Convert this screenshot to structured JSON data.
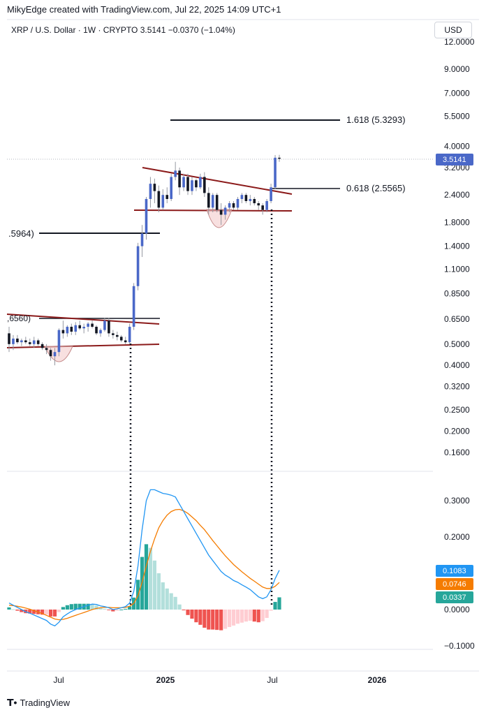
{
  "header": {
    "caption": "MikyEdge created with TradingView.com, Jul 22, 2025 14:09 UTC+1",
    "symbol_line": "XRP / U.S. Dollar · 1W · CRYPTO  3.5141  −0.0370 (−1.04%)",
    "currency_button": "USD"
  },
  "footer": {
    "brand": "TradingView",
    "logo_icon": "tradingview-logo-icon"
  },
  "colors": {
    "up": "#4a68c8",
    "down": "#131722",
    "macd": "#2196f3",
    "signal": "#f57c00",
    "hist_up_strong": "#26a69a",
    "hist_up_weak": "#b2dfdb",
    "hist_down_strong": "#ef5350",
    "hist_down_weak": "#ffcdd2",
    "trendline": "#8b1a1a"
  },
  "chart_data": [
    {
      "type": "candlestick",
      "scale": "log",
      "price_axis_labels": [
        "12.0000",
        "9.0000",
        "7.0000",
        "5.5000",
        "4.0000",
        "3.2000",
        "2.4000",
        "1.8000",
        "1.4000",
        "1.1000",
        "0.8500",
        "0.6500",
        "0.5000",
        "0.4000",
        "0.3200",
        "0.2500",
        "0.2000",
        "0.1600"
      ],
      "price_axis_values": [
        12,
        9,
        7,
        5.5,
        4,
        3.2,
        2.4,
        1.8,
        1.4,
        1.1,
        0.85,
        0.65,
        0.5,
        0.4,
        0.32,
        0.25,
        0.2,
        0.16
      ],
      "x_axis_labels": [
        "Jul",
        "2025",
        "Jul",
        "2026"
      ],
      "last_price_label": "3.5141",
      "last_price": 3.5141,
      "annotations": [
        {
          "label": "1.618 (5.3293)",
          "price": 5.3293
        },
        {
          "label": "0.618 (2.5565)",
          "price": 2.5565
        },
        {
          "label": ".5964)",
          "price": 1.5964
        },
        {
          "label": ",6560)",
          "price": 0.656
        }
      ],
      "candles": [
        [
          0.56,
          0.6,
          0.46,
          0.5
        ],
        [
          0.5,
          0.55,
          0.47,
          0.53
        ],
        [
          0.53,
          0.55,
          0.5,
          0.51
        ],
        [
          0.51,
          0.53,
          0.49,
          0.52
        ],
        [
          0.52,
          0.54,
          0.5,
          0.51
        ],
        [
          0.51,
          0.53,
          0.49,
          0.5
        ],
        [
          0.5,
          0.54,
          0.48,
          0.52
        ],
        [
          0.52,
          0.53,
          0.49,
          0.5
        ],
        [
          0.5,
          0.51,
          0.47,
          0.48
        ],
        [
          0.48,
          0.5,
          0.45,
          0.47
        ],
        [
          0.47,
          0.48,
          0.42,
          0.44
        ],
        [
          0.44,
          0.48,
          0.4,
          0.46
        ],
        [
          0.46,
          0.59,
          0.44,
          0.58
        ],
        [
          0.58,
          0.64,
          0.53,
          0.56
        ],
        [
          0.56,
          0.61,
          0.54,
          0.6
        ],
        [
          0.6,
          0.62,
          0.55,
          0.57
        ],
        [
          0.57,
          0.63,
          0.55,
          0.61
        ],
        [
          0.61,
          0.64,
          0.58,
          0.59
        ],
        [
          0.59,
          0.62,
          0.56,
          0.6
        ],
        [
          0.6,
          0.63,
          0.57,
          0.62
        ],
        [
          0.62,
          0.64,
          0.59,
          0.6
        ],
        [
          0.6,
          0.61,
          0.55,
          0.56
        ],
        [
          0.56,
          0.59,
          0.54,
          0.58
        ],
        [
          0.58,
          0.66,
          0.57,
          0.64
        ],
        [
          0.64,
          0.66,
          0.54,
          0.56
        ],
        [
          0.56,
          0.58,
          0.53,
          0.55
        ],
        [
          0.55,
          0.57,
          0.52,
          0.54
        ],
        [
          0.54,
          0.55,
          0.51,
          0.52
        ],
        [
          0.52,
          0.54,
          0.5,
          0.51
        ],
        [
          0.51,
          0.62,
          0.5,
          0.6
        ],
        [
          0.6,
          0.95,
          0.58,
          0.92
        ],
        [
          0.92,
          1.45,
          0.88,
          1.4
        ],
        [
          1.4,
          1.75,
          1.25,
          1.6
        ],
        [
          1.6,
          2.35,
          1.5,
          2.3
        ],
        [
          2.3,
          2.9,
          2.1,
          2.7
        ],
        [
          2.7,
          2.85,
          2.2,
          2.5
        ],
        [
          2.5,
          2.65,
          2.0,
          2.1
        ],
        [
          2.1,
          2.55,
          2.05,
          2.4
        ],
        [
          2.4,
          2.6,
          2.2,
          2.3
        ],
        [
          2.3,
          3.0,
          2.25,
          2.9
        ],
        [
          2.9,
          3.4,
          2.8,
          3.1
        ],
        [
          3.1,
          3.2,
          2.4,
          2.6
        ],
        [
          2.6,
          3.0,
          2.5,
          2.9
        ],
        [
          2.9,
          3.0,
          2.4,
          2.5
        ],
        [
          2.5,
          2.9,
          2.4,
          2.8
        ],
        [
          2.8,
          2.85,
          2.5,
          2.6
        ],
        [
          2.6,
          3.0,
          2.55,
          2.9
        ],
        [
          2.9,
          3.05,
          2.35,
          2.45
        ],
        [
          2.45,
          2.6,
          1.95,
          2.1
        ],
        [
          2.1,
          2.45,
          2.0,
          2.4
        ],
        [
          2.4,
          2.45,
          2.0,
          2.05
        ],
        [
          2.05,
          2.2,
          1.75,
          1.95
        ],
        [
          1.95,
          2.15,
          1.85,
          2.1
        ],
        [
          2.1,
          2.25,
          2.0,
          2.2
        ],
        [
          2.2,
          2.25,
          2.05,
          2.1
        ],
        [
          2.1,
          2.35,
          2.05,
          2.3
        ],
        [
          2.3,
          2.45,
          2.2,
          2.4
        ],
        [
          2.4,
          2.45,
          2.2,
          2.25
        ],
        [
          2.25,
          2.4,
          2.15,
          2.3
        ],
        [
          2.3,
          2.35,
          2.15,
          2.2
        ],
        [
          2.2,
          2.25,
          2.05,
          2.15
        ],
        [
          2.15,
          2.2,
          1.95,
          2.05
        ],
        [
          2.05,
          2.3,
          2.0,
          2.25
        ],
        [
          2.25,
          2.7,
          2.2,
          2.6
        ],
        [
          2.6,
          3.65,
          2.55,
          3.55
        ],
        [
          3.55,
          3.66,
          3.4,
          3.51
        ]
      ]
    },
    {
      "type": "macd",
      "axis_labels": [
        "0.3000",
        "0.2000",
        "0.1000",
        "0.0000",
        "−0.1000"
      ],
      "axis_values": [
        0.3,
        0.2,
        0.1,
        0.0,
        -0.1
      ],
      "macd_label": "0.1083",
      "signal_label": "0.0746",
      "histogram_label": "0.0337",
      "macd": [
        0.018,
        0.012,
        0.006,
        0.0,
        -0.006,
        -0.01,
        -0.015,
        -0.02,
        -0.025,
        -0.03,
        -0.04,
        -0.045,
        -0.035,
        -0.02,
        -0.012,
        -0.005,
        0.0,
        0.004,
        0.008,
        0.012,
        0.015,
        0.014,
        0.01,
        0.008,
        0.005,
        0.0,
        0.002,
        0.005,
        0.008,
        0.018,
        0.05,
        0.12,
        0.22,
        0.3,
        0.33,
        0.33,
        0.325,
        0.32,
        0.318,
        0.315,
        0.31,
        0.29,
        0.27,
        0.25,
        0.23,
        0.21,
        0.19,
        0.17,
        0.15,
        0.135,
        0.12,
        0.105,
        0.095,
        0.088,
        0.08,
        0.075,
        0.068,
        0.062,
        0.055,
        0.045,
        0.035,
        0.03,
        0.035,
        0.055,
        0.085,
        0.1083
      ],
      "signal": [
        0.012,
        0.011,
        0.009,
        0.007,
        0.004,
        0.001,
        -0.003,
        -0.007,
        -0.011,
        -0.016,
        -0.021,
        -0.026,
        -0.028,
        -0.027,
        -0.024,
        -0.02,
        -0.016,
        -0.012,
        -0.008,
        -0.004,
        0.0,
        0.003,
        0.005,
        0.006,
        0.006,
        0.005,
        0.005,
        0.005,
        0.006,
        0.009,
        0.017,
        0.038,
        0.075,
        0.12,
        0.16,
        0.195,
        0.225,
        0.245,
        0.26,
        0.27,
        0.275,
        0.276,
        0.272,
        0.265,
        0.255,
        0.245,
        0.232,
        0.22,
        0.205,
        0.19,
        0.176,
        0.162,
        0.148,
        0.136,
        0.124,
        0.114,
        0.104,
        0.095,
        0.086,
        0.078,
        0.07,
        0.062,
        0.058,
        0.058,
        0.064,
        0.0746
      ]
    }
  ]
}
